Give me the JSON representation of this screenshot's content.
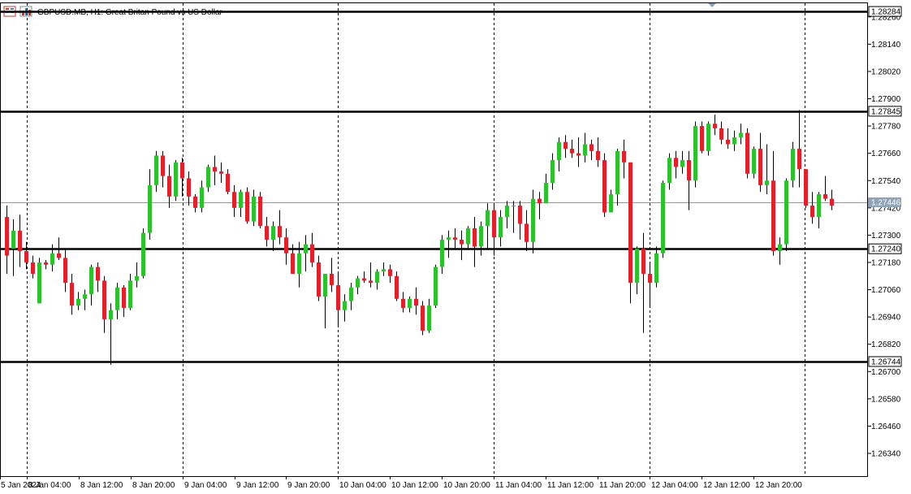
{
  "header": {
    "symbol": "GBPUSD.MB",
    "timeframe": "H1",
    "description": "Great Britan Pound vs US Dollar",
    "title": "GBPUSD.MB, H1:  Great Britan Pound vs US Dollar",
    "icons": [
      "trade-panel-icon",
      "market-depth-icon"
    ]
  },
  "colors": {
    "background": "#ffffff",
    "frame": "#000000",
    "bull": "#2fc02f",
    "bear": "#e0202a",
    "wick": "#000000",
    "level_line": "#000000",
    "bid_line": "#8a9aae",
    "bid_label_bg": "#8ea2b8",
    "grid": "#000000"
  },
  "chart_data": {
    "type": "candlestick",
    "ylim": [
      1.2624,
      1.2832
    ],
    "y_ticks": [
      "1.26340",
      "1.26460",
      "1.26580",
      "1.26700",
      "1.26820",
      "1.26940",
      "1.27060",
      "1.27180",
      "1.27300",
      "1.27420",
      "1.27540",
      "1.27660",
      "1.27780",
      "1.27900",
      "1.28020",
      "1.28140",
      "1.28260"
    ],
    "x_ticks": [
      "5 Jan 2024",
      "8 Jan 04:00",
      "8 Jan 12:00",
      "8 Jan 20:00",
      "9 Jan 04:00",
      "9 Jan 12:00",
      "9 Jan 20:00",
      "10 Jan 04:00",
      "10 Jan 12:00",
      "10 Jan 20:00",
      "11 Jan 04:00",
      "11 Jan 12:00",
      "11 Jan 20:00",
      "12 Jan 04:00",
      "12 Jan 12:00",
      "12 Jan 20:00"
    ],
    "levels": [
      {
        "price": 1.28284,
        "label": "1.28284"
      },
      {
        "price": 1.27845,
        "label": "1.27845"
      },
      {
        "price": 1.2724,
        "label": "1.27240"
      },
      {
        "price": 1.26744,
        "label": "1.26744"
      }
    ],
    "bid": {
      "price": 1.27446,
      "label": "1.27446"
    },
    "candles": [
      [
        1.2738,
        1.2743,
        1.2713,
        1.2721
      ],
      [
        1.2724,
        1.2737,
        1.2712,
        1.2732
      ],
      [
        1.2732,
        1.2739,
        1.2716,
        1.2723
      ],
      [
        1.2723,
        1.2727,
        1.2715,
        1.2718
      ],
      [
        1.2718,
        1.2721,
        1.2711,
        1.2713
      ],
      [
        1.27,
        1.272,
        1.27,
        1.2718
      ],
      [
        1.2718,
        1.2719,
        1.2715,
        1.2717
      ],
      [
        1.2717,
        1.2726,
        1.2714,
        1.2722
      ],
      [
        1.2722,
        1.2729,
        1.2719,
        1.272
      ],
      [
        1.272,
        1.2724,
        1.2705,
        1.2709
      ],
      [
        1.2709,
        1.2713,
        1.2695,
        1.2699
      ],
      [
        1.2699,
        1.2705,
        1.2697,
        1.2702
      ],
      [
        1.2702,
        1.2706,
        1.2697,
        1.2704
      ],
      [
        1.2704,
        1.2717,
        1.2699,
        1.2716
      ],
      [
        1.2716,
        1.2718,
        1.2705,
        1.271
      ],
      [
        1.271,
        1.2712,
        1.2687,
        1.2693
      ],
      [
        1.2693,
        1.27,
        1.2673,
        1.2697
      ],
      [
        1.2697,
        1.2709,
        1.2693,
        1.2707
      ],
      [
        1.2707,
        1.2708,
        1.2694,
        1.2698
      ],
      [
        1.2698,
        1.2713,
        1.2697,
        1.271
      ],
      [
        1.271,
        1.2718,
        1.2707,
        1.2712
      ],
      [
        1.2712,
        1.2733,
        1.2711,
        1.2731
      ],
      [
        1.2731,
        1.2759,
        1.2728,
        1.2752
      ],
      [
        1.2752,
        1.2767,
        1.2749,
        1.2765
      ],
      [
        1.2765,
        1.2767,
        1.2751,
        1.2756
      ],
      [
        1.2756,
        1.2761,
        1.2742,
        1.2747
      ],
      [
        1.2747,
        1.2763,
        1.2745,
        1.2762
      ],
      [
        1.2762,
        1.2764,
        1.2747,
        1.2755
      ],
      [
        1.2755,
        1.2758,
        1.2743,
        1.2747
      ],
      [
        1.2747,
        1.2748,
        1.274,
        1.2742
      ],
      [
        1.2742,
        1.2754,
        1.274,
        1.2751
      ],
      [
        1.2751,
        1.2761,
        1.2749,
        1.276
      ],
      [
        1.276,
        1.2765,
        1.2752,
        1.2758
      ],
      [
        1.2758,
        1.2762,
        1.2753,
        1.2757
      ],
      [
        1.2757,
        1.2759,
        1.2748,
        1.2749
      ],
      [
        1.2749,
        1.2752,
        1.2738,
        1.2742
      ],
      [
        1.2742,
        1.275,
        1.2738,
        1.2749
      ],
      [
        1.2749,
        1.2751,
        1.2735,
        1.2736
      ],
      [
        1.2736,
        1.275,
        1.2734,
        1.2747
      ],
      [
        1.2747,
        1.2749,
        1.2733,
        1.2734
      ],
      [
        1.2734,
        1.2738,
        1.2725,
        1.2728
      ],
      [
        1.2728,
        1.2736,
        1.2723,
        1.2734
      ],
      [
        1.2734,
        1.2741,
        1.2726,
        1.2729
      ],
      [
        1.2729,
        1.2733,
        1.2717,
        1.2722
      ],
      [
        1.2722,
        1.2726,
        1.2713,
        1.2713
      ],
      [
        1.2713,
        1.2727,
        1.2707,
        1.2722
      ],
      [
        1.2722,
        1.273,
        1.2714,
        1.2726
      ],
      [
        1.2726,
        1.2731,
        1.2716,
        1.2718
      ],
      [
        1.2718,
        1.2721,
        1.2701,
        1.2703
      ],
      [
        1.2703,
        1.2712,
        1.2689,
        1.2713
      ],
      [
        1.2713,
        1.272,
        1.2705,
        1.2708
      ],
      [
        1.2708,
        1.2713,
        1.269,
        1.2697
      ],
      [
        1.2697,
        1.2704,
        1.2692,
        1.2701
      ],
      [
        1.2701,
        1.2709,
        1.2697,
        1.2707
      ],
      [
        1.2707,
        1.2712,
        1.2704,
        1.2711
      ],
      [
        1.2711,
        1.2714,
        1.2709,
        1.271
      ],
      [
        1.271,
        1.2718,
        1.2707,
        1.2709
      ],
      [
        1.2709,
        1.2715,
        1.2706,
        1.2714
      ],
      [
        1.2714,
        1.2718,
        1.2712,
        1.2715
      ],
      [
        1.2715,
        1.2717,
        1.2709,
        1.2712
      ],
      [
        1.2712,
        1.2714,
        1.2701,
        1.2702
      ],
      [
        1.2702,
        1.2705,
        1.2696,
        1.2698
      ],
      [
        1.2698,
        1.2703,
        1.2696,
        1.2702
      ],
      [
        1.2702,
        1.2707,
        1.2695,
        1.2699
      ],
      [
        1.2699,
        1.2701,
        1.2686,
        1.2688
      ],
      [
        1.2688,
        1.2702,
        1.2687,
        1.2699
      ],
      [
        1.2699,
        1.2717,
        1.2698,
        1.2716
      ],
      [
        1.2716,
        1.273,
        1.2713,
        1.2728
      ],
      [
        1.2728,
        1.2732,
        1.272,
        1.2729
      ],
      [
        1.2729,
        1.2733,
        1.2724,
        1.2728
      ],
      [
        1.2728,
        1.2732,
        1.2719,
        1.2726
      ],
      [
        1.2726,
        1.2734,
        1.2724,
        1.2733
      ],
      [
        1.2733,
        1.2738,
        1.2716,
        1.2725
      ],
      [
        1.2725,
        1.2736,
        1.2721,
        1.2734
      ],
      [
        1.2734,
        1.2744,
        1.2724,
        1.2741
      ],
      [
        1.2741,
        1.2743,
        1.2721,
        1.2729
      ],
      [
        1.2729,
        1.2741,
        1.2725,
        1.2738
      ],
      [
        1.2738,
        1.2745,
        1.2733,
        1.2743
      ],
      [
        1.2743,
        1.2745,
        1.2731,
        1.2743
      ],
      [
        1.2743,
        1.2745,
        1.2728,
        1.2735
      ],
      [
        1.2735,
        1.2741,
        1.2723,
        1.2727
      ],
      [
        1.2727,
        1.275,
        1.2722,
        1.2746
      ],
      [
        1.2746,
        1.2749,
        1.2737,
        1.2744
      ],
      [
        1.2744,
        1.2757,
        1.2744,
        1.2753
      ],
      [
        1.2753,
        1.2766,
        1.275,
        1.2763
      ],
      [
        1.2763,
        1.2773,
        1.2758,
        1.2771
      ],
      [
        1.2771,
        1.2774,
        1.2764,
        1.2768
      ],
      [
        1.2768,
        1.2772,
        1.2764,
        1.2766
      ],
      [
        1.2766,
        1.2773,
        1.276,
        1.2765
      ],
      [
        1.2765,
        1.2775,
        1.2762,
        1.277
      ],
      [
        1.277,
        1.2772,
        1.2763,
        1.2767
      ],
      [
        1.2767,
        1.2773,
        1.276,
        1.2763
      ],
      [
        1.2763,
        1.2766,
        1.2738,
        1.274
      ],
      [
        1.274,
        1.275,
        1.274,
        1.2748
      ],
      [
        1.2748,
        1.2768,
        1.2743,
        1.2767
      ],
      [
        1.2767,
        1.2772,
        1.2755,
        1.2762
      ],
      [
        1.2762,
        1.2762,
        1.27,
        1.2709
      ],
      [
        1.2709,
        1.2725,
        1.2704,
        1.2724
      ],
      [
        1.2724,
        1.2731,
        1.2687,
        1.2713
      ],
      [
        1.2713,
        1.2718,
        1.2699,
        1.2709
      ],
      [
        1.2709,
        1.2725,
        1.2707,
        1.2722
      ],
      [
        1.2722,
        1.2754,
        1.272,
        1.2753
      ],
      [
        1.2753,
        1.2766,
        1.275,
        1.2764
      ],
      [
        1.2764,
        1.2767,
        1.2755,
        1.276
      ],
      [
        1.276,
        1.2767,
        1.2757,
        1.2763
      ],
      [
        1.2763,
        1.2767,
        1.2741,
        1.2754
      ],
      [
        1.2754,
        1.278,
        1.2751,
        1.2778
      ],
      [
        1.2778,
        1.278,
        1.2766,
        1.2767
      ],
      [
        1.2767,
        1.278,
        1.2765,
        1.2779
      ],
      [
        1.2779,
        1.2783,
        1.2774,
        1.2777
      ],
      [
        1.2777,
        1.278,
        1.277,
        1.2772
      ],
      [
        1.2772,
        1.2777,
        1.2768,
        1.277
      ],
      [
        1.277,
        1.2776,
        1.2767,
        1.2773
      ],
      [
        1.2773,
        1.2779,
        1.277,
        1.2775
      ],
      [
        1.2775,
        1.2777,
        1.2755,
        1.2757
      ],
      [
        1.2757,
        1.2769,
        1.2755,
        1.2768
      ],
      [
        1.2768,
        1.2775,
        1.2749,
        1.2752
      ],
      [
        1.2752,
        1.277,
        1.2748,
        1.2754
      ],
      [
        1.2754,
        1.2767,
        1.2721,
        1.2723
      ],
      [
        1.2723,
        1.2729,
        1.2717,
        1.2726
      ],
      [
        1.2726,
        1.2755,
        1.2723,
        1.2754
      ],
      [
        1.2754,
        1.2771,
        1.2751,
        1.2768
      ],
      [
        1.2768,
        1.2785,
        1.2751,
        1.2759
      ],
      [
        1.2759,
        1.2759,
        1.2742,
        1.2743
      ],
      [
        1.2743,
        1.2749,
        1.2735,
        1.2738
      ],
      [
        1.2738,
        1.2749,
        1.2733,
        1.2748
      ],
      [
        1.2748,
        1.2756,
        1.2745,
        1.2746
      ],
      [
        1.2746,
        1.275,
        1.2741,
        1.2743
      ]
    ]
  }
}
